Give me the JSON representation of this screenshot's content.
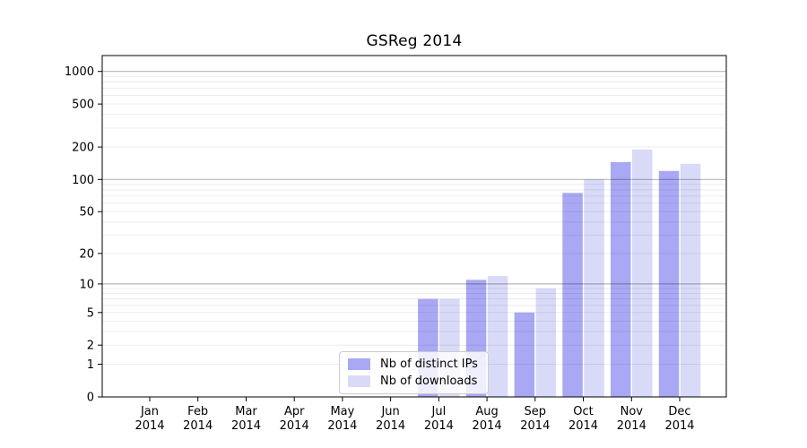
{
  "title": "GSReg 2014",
  "colors": {
    "bar_ips": "#a8a8f4",
    "bar_downloads": "#d9d9f8",
    "grid_minor": "rgba(0,0,0,0.075)",
    "grid_major": "rgba(0,0,0,0.28)",
    "axis": "#000000",
    "text": "#000000",
    "legend_border": "#cccccc",
    "legend_bg": "rgba(255,255,255,0.8)"
  },
  "chart_data": {
    "type": "bar",
    "title": "GSReg 2014",
    "categories": [
      "Jan",
      "Feb",
      "Mar",
      "Apr",
      "May",
      "Jun",
      "Jul",
      "Aug",
      "Sep",
      "Oct",
      "Nov",
      "Dec"
    ],
    "year": "2014",
    "series": [
      {
        "name": "Nb of distinct IPs",
        "values": [
          0,
          0,
          0,
          0,
          0,
          0,
          7,
          11,
          5,
          75,
          145,
          120
        ]
      },
      {
        "name": "Nb of downloads",
        "values": [
          0,
          0,
          0,
          0,
          0,
          0,
          7,
          12,
          9,
          100,
          190,
          140
        ]
      }
    ],
    "yticks": [
      0,
      1,
      2,
      5,
      10,
      20,
      50,
      100,
      200,
      500,
      1000
    ],
    "ylim": [
      0,
      1400
    ],
    "yscale": "log1p",
    "grid": "both",
    "legend_position": "lower-center-inside",
    "xlabel": "",
    "ylabel": ""
  }
}
